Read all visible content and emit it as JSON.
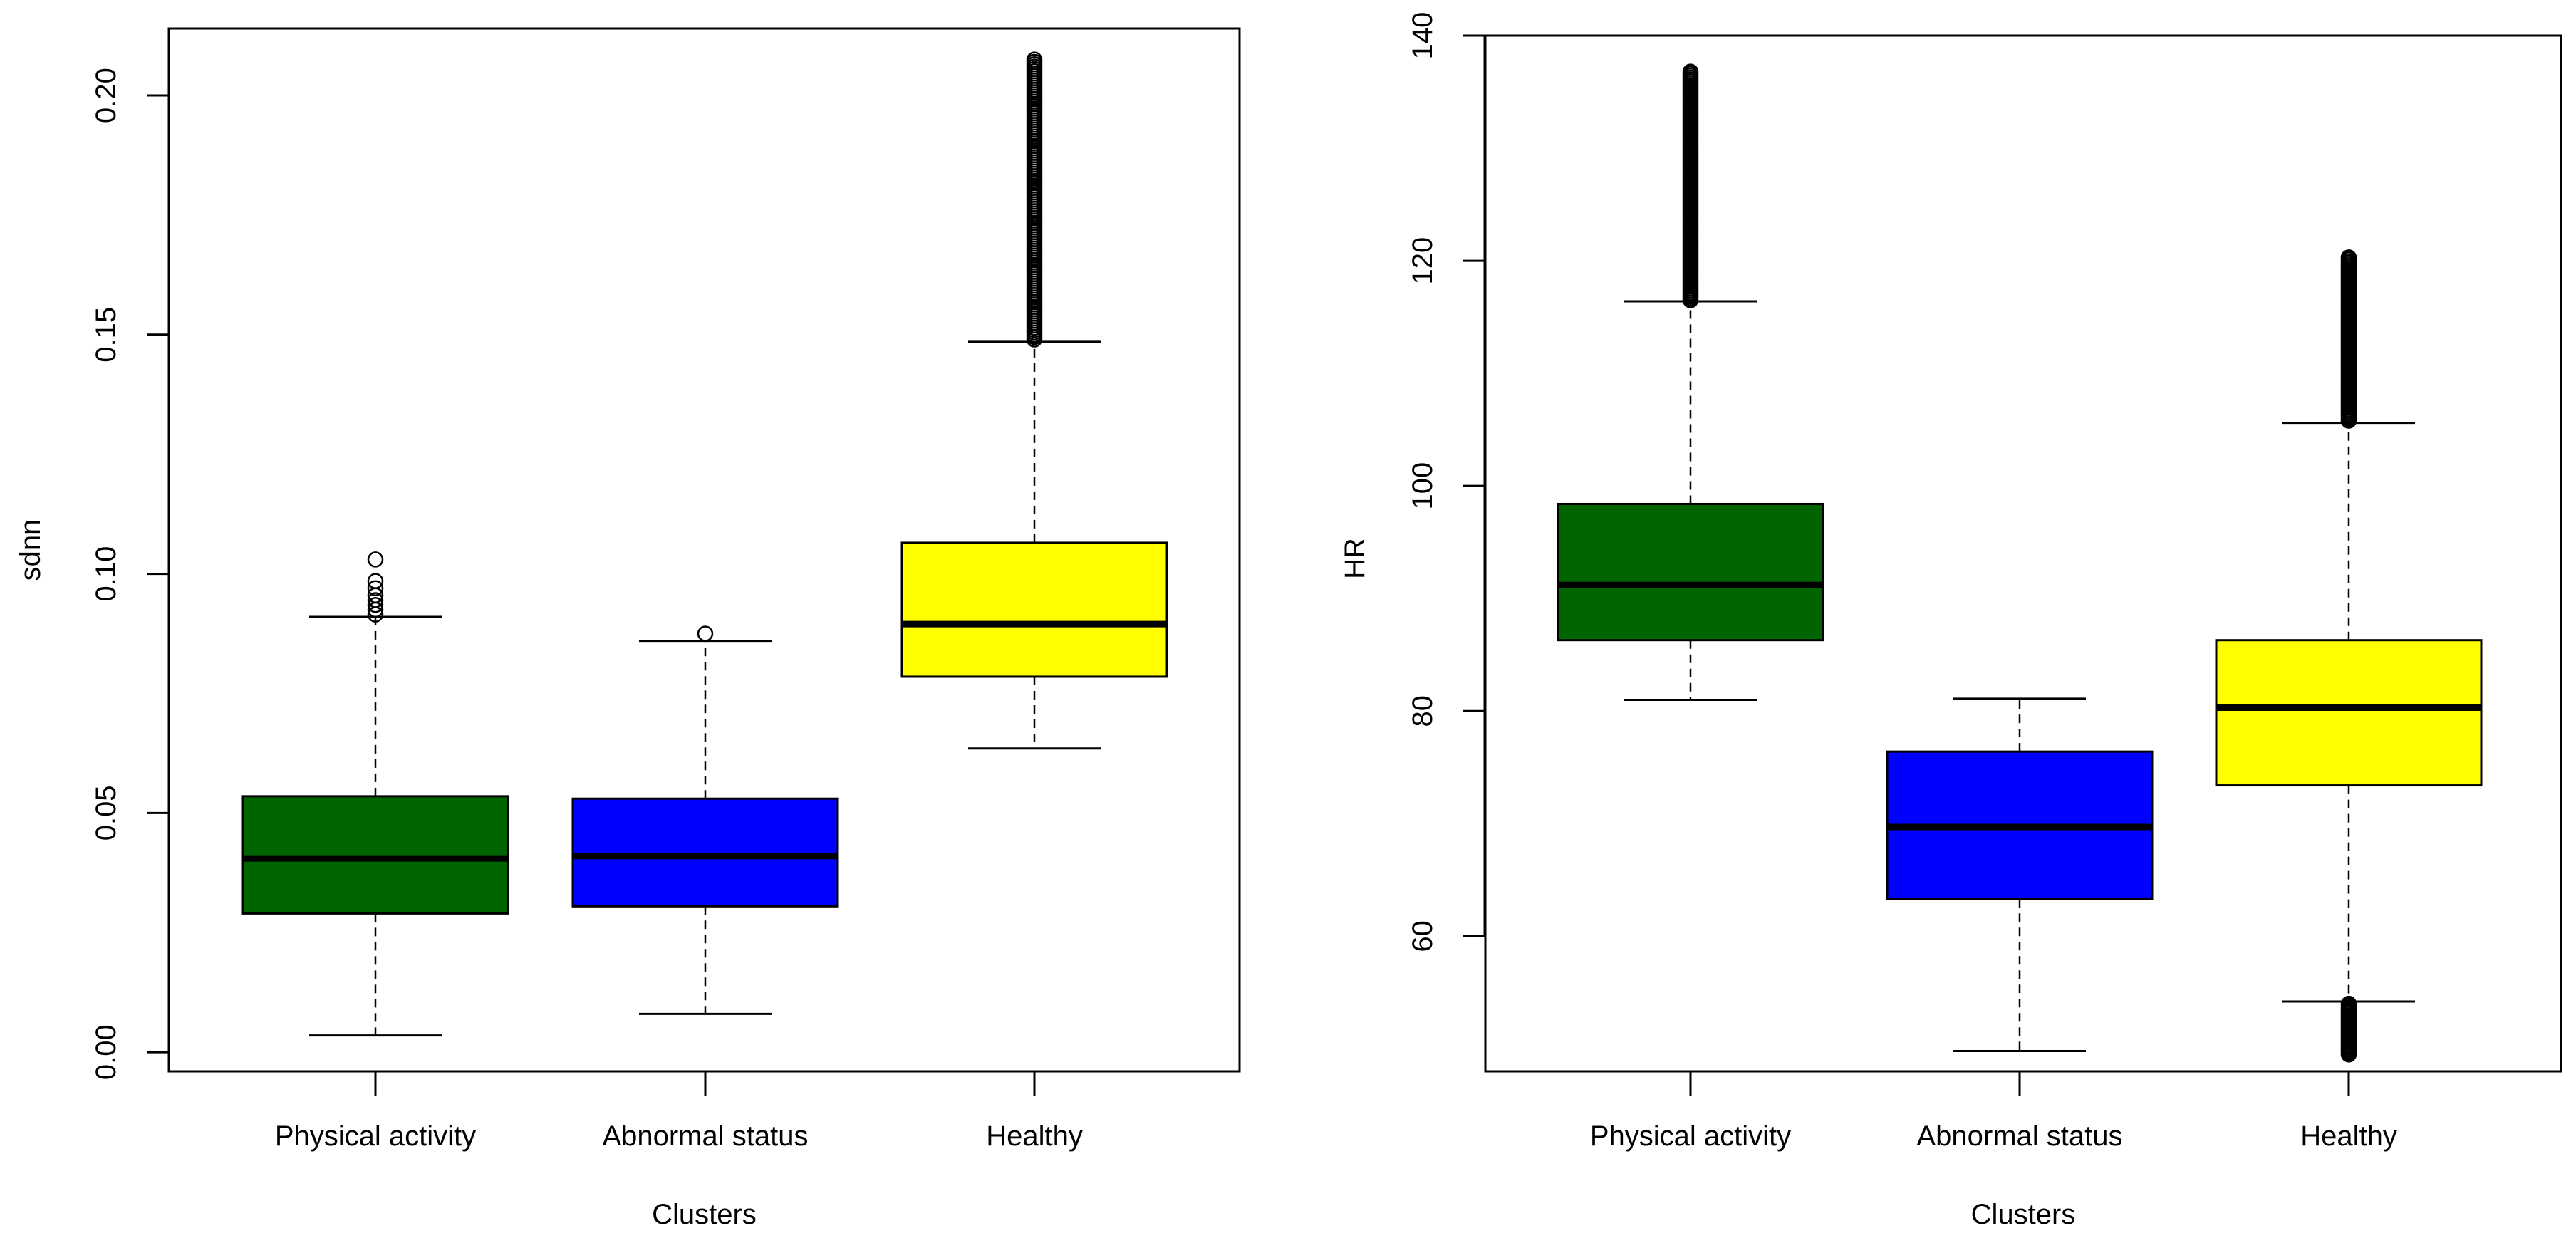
{
  "chart_data": [
    {
      "type": "box",
      "xlabel": "Clusters",
      "ylabel": "sdnn",
      "ylim": [
        -0.004,
        0.214
      ],
      "yticks": [
        0.0,
        0.05,
        0.1,
        0.15,
        0.2
      ],
      "ytick_labels": [
        "0.00",
        "0.05",
        "0.10",
        "0.15",
        "0.20"
      ],
      "categories": [
        "Physical activity",
        "Abnormal status",
        "Healthy"
      ],
      "colors": [
        "#006400",
        "#0000ff",
        "#ffff00"
      ],
      "boxes": [
        {
          "name": "Physical activity",
          "whisker_low": 0.0035,
          "q1": 0.029,
          "median": 0.0405,
          "q3": 0.0535,
          "whisker_high": 0.091,
          "outliers": [
            0.0915,
            0.0925,
            0.0935,
            0.0945,
            0.0955,
            0.097,
            0.0985,
            0.103
          ]
        },
        {
          "name": "Abnormal status",
          "whisker_low": 0.008,
          "q1": 0.0305,
          "median": 0.041,
          "q3": 0.053,
          "whisker_high": 0.086,
          "outliers": [
            0.0875
          ]
        },
        {
          "name": "Healthy",
          "whisker_low": 0.0635,
          "q1": 0.0785,
          "median": 0.0895,
          "q3": 0.1065,
          "whisker_high": 0.1485,
          "outlier_range": [
            0.149,
            0.2075
          ]
        }
      ]
    },
    {
      "type": "box",
      "xlabel": "Clusters",
      "ylabel": "HR",
      "ylim": [
        48,
        140
      ],
      "yticks": [
        60,
        80,
        100,
        120,
        140
      ],
      "ytick_labels": [
        "60",
        "80",
        "100",
        "120",
        "140"
      ],
      "categories": [
        "Physical activity",
        "Abnormal status",
        "Healthy"
      ],
      "colors": [
        "#006400",
        "#0000ff",
        "#ffff00"
      ],
      "boxes": [
        {
          "name": "Physical activity",
          "whisker_low": 81,
          "q1": 86.3,
          "median": 91.2,
          "q3": 98.4,
          "whisker_high": 116.4,
          "outlier_range": [
            116.5,
            136.8
          ]
        },
        {
          "name": "Abnormal status",
          "whisker_low": 49.8,
          "q1": 63.3,
          "median": 69.7,
          "q3": 76.4,
          "whisker_high": 81.1
        },
        {
          "name": "Healthy",
          "whisker_low": 54.2,
          "q1": 73.4,
          "median": 80.3,
          "q3": 86.3,
          "whisker_high": 105.6,
          "outlier_range_high": [
            105.8,
            120.3
          ],
          "outlier_range_low": [
            49.5,
            54.0
          ]
        }
      ]
    }
  ]
}
